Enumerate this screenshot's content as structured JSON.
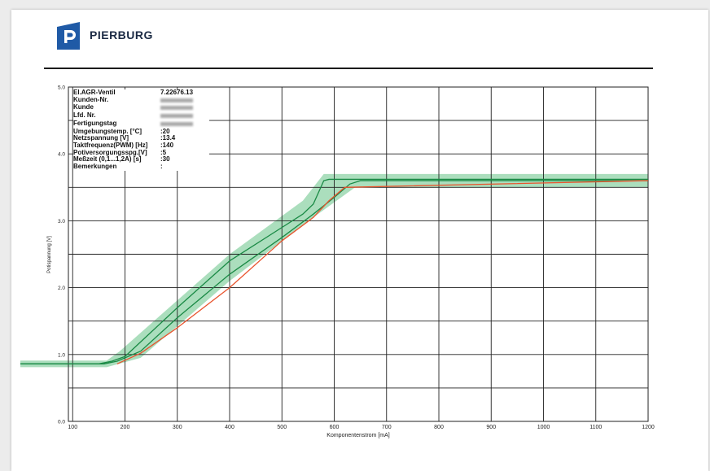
{
  "brand": {
    "name": "PIERBURG",
    "color": "#1f5aa6"
  },
  "info_table": [
    {
      "label": "El.AGR-Ventil",
      "value": "7.22676.13",
      "blurred": false
    },
    {
      "label": "Kunden-Nr.",
      "value": "",
      "blurred": true
    },
    {
      "label": "Kunde",
      "value": "",
      "blurred": true
    },
    {
      "label": "Lfd. Nr.",
      "value": "",
      "blurred": true
    },
    {
      "label": "Fertigungstag",
      "value": "",
      "blurred": true
    },
    {
      "label": "Umgebungstemp. [°C]",
      "value": ":20",
      "blurred": false
    },
    {
      "label": "Netzspannung  [V]",
      "value": ":13.4",
      "blurred": false
    },
    {
      "label": "Taktfrequenz(PWM) [Hz]",
      "value": ":140",
      "blurred": false
    },
    {
      "label": "Potiversorgungsspg.[V]",
      "value": ":5",
      "blurred": false
    },
    {
      "label": "Meßzeit (0,1...1,2A) [s]",
      "value": ":30",
      "blurred": false
    },
    {
      "label": "Bemerkungen",
      "value": ":",
      "blurred": false
    }
  ],
  "chart_data": {
    "type": "line",
    "xlabel": "Komponentenstrom [mA]",
    "ylabel": "Potispannung [V]",
    "xlim": [
      0,
      1200
    ],
    "ylim": [
      0,
      5
    ],
    "x_ticks": [
      100,
      200,
      300,
      400,
      500,
      600,
      700,
      800,
      900,
      1000,
      1100,
      1200
    ],
    "y_ticks": [
      "0.0",
      "1.0",
      "2.0",
      "3.0",
      "4.0",
      "5.0"
    ],
    "grid": true,
    "tolerance_band": {
      "color": "#8fd3a7",
      "upper": [
        [
          0,
          0.91
        ],
        [
          165,
          0.91
        ],
        [
          190,
          1.05
        ],
        [
          400,
          2.5
        ],
        [
          540,
          3.3
        ],
        [
          580,
          3.7
        ],
        [
          1200,
          3.7
        ]
      ],
      "lower": [
        [
          0,
          0.81
        ],
        [
          165,
          0.81
        ],
        [
          230,
          0.95
        ],
        [
          400,
          2.1
        ],
        [
          560,
          3.05
        ],
        [
          640,
          3.5
        ],
        [
          1200,
          3.5
        ]
      ]
    },
    "series": [
      {
        "color": "#1a8a45",
        "points": [
          [
            0,
            0.86
          ],
          [
            150,
            0.86
          ],
          [
            175,
            0.9
          ],
          [
            200,
            0.97
          ],
          [
            300,
            1.7
          ],
          [
            400,
            2.4
          ],
          [
            500,
            2.9
          ],
          [
            540,
            3.1
          ],
          [
            560,
            3.25
          ],
          [
            580,
            3.6
          ],
          [
            590,
            3.62
          ],
          [
            1200,
            3.62
          ]
        ]
      },
      {
        "color": "#1a8a45",
        "points": [
          [
            0,
            0.86
          ],
          [
            160,
            0.86
          ],
          [
            185,
            0.9
          ],
          [
            230,
            1.05
          ],
          [
            300,
            1.55
          ],
          [
            400,
            2.2
          ],
          [
            500,
            2.75
          ],
          [
            560,
            3.1
          ],
          [
            600,
            3.35
          ],
          [
            630,
            3.55
          ],
          [
            650,
            3.6
          ],
          [
            1200,
            3.6
          ]
        ]
      },
      {
        "color": "#e8542e",
        "points": [
          [
            185,
            0.86
          ],
          [
            230,
            1.02
          ],
          [
            300,
            1.4
          ],
          [
            400,
            2.0
          ],
          [
            500,
            2.7
          ],
          [
            560,
            3.05
          ],
          [
            590,
            3.3
          ],
          [
            620,
            3.5
          ],
          [
            1200,
            3.6
          ]
        ]
      }
    ]
  }
}
